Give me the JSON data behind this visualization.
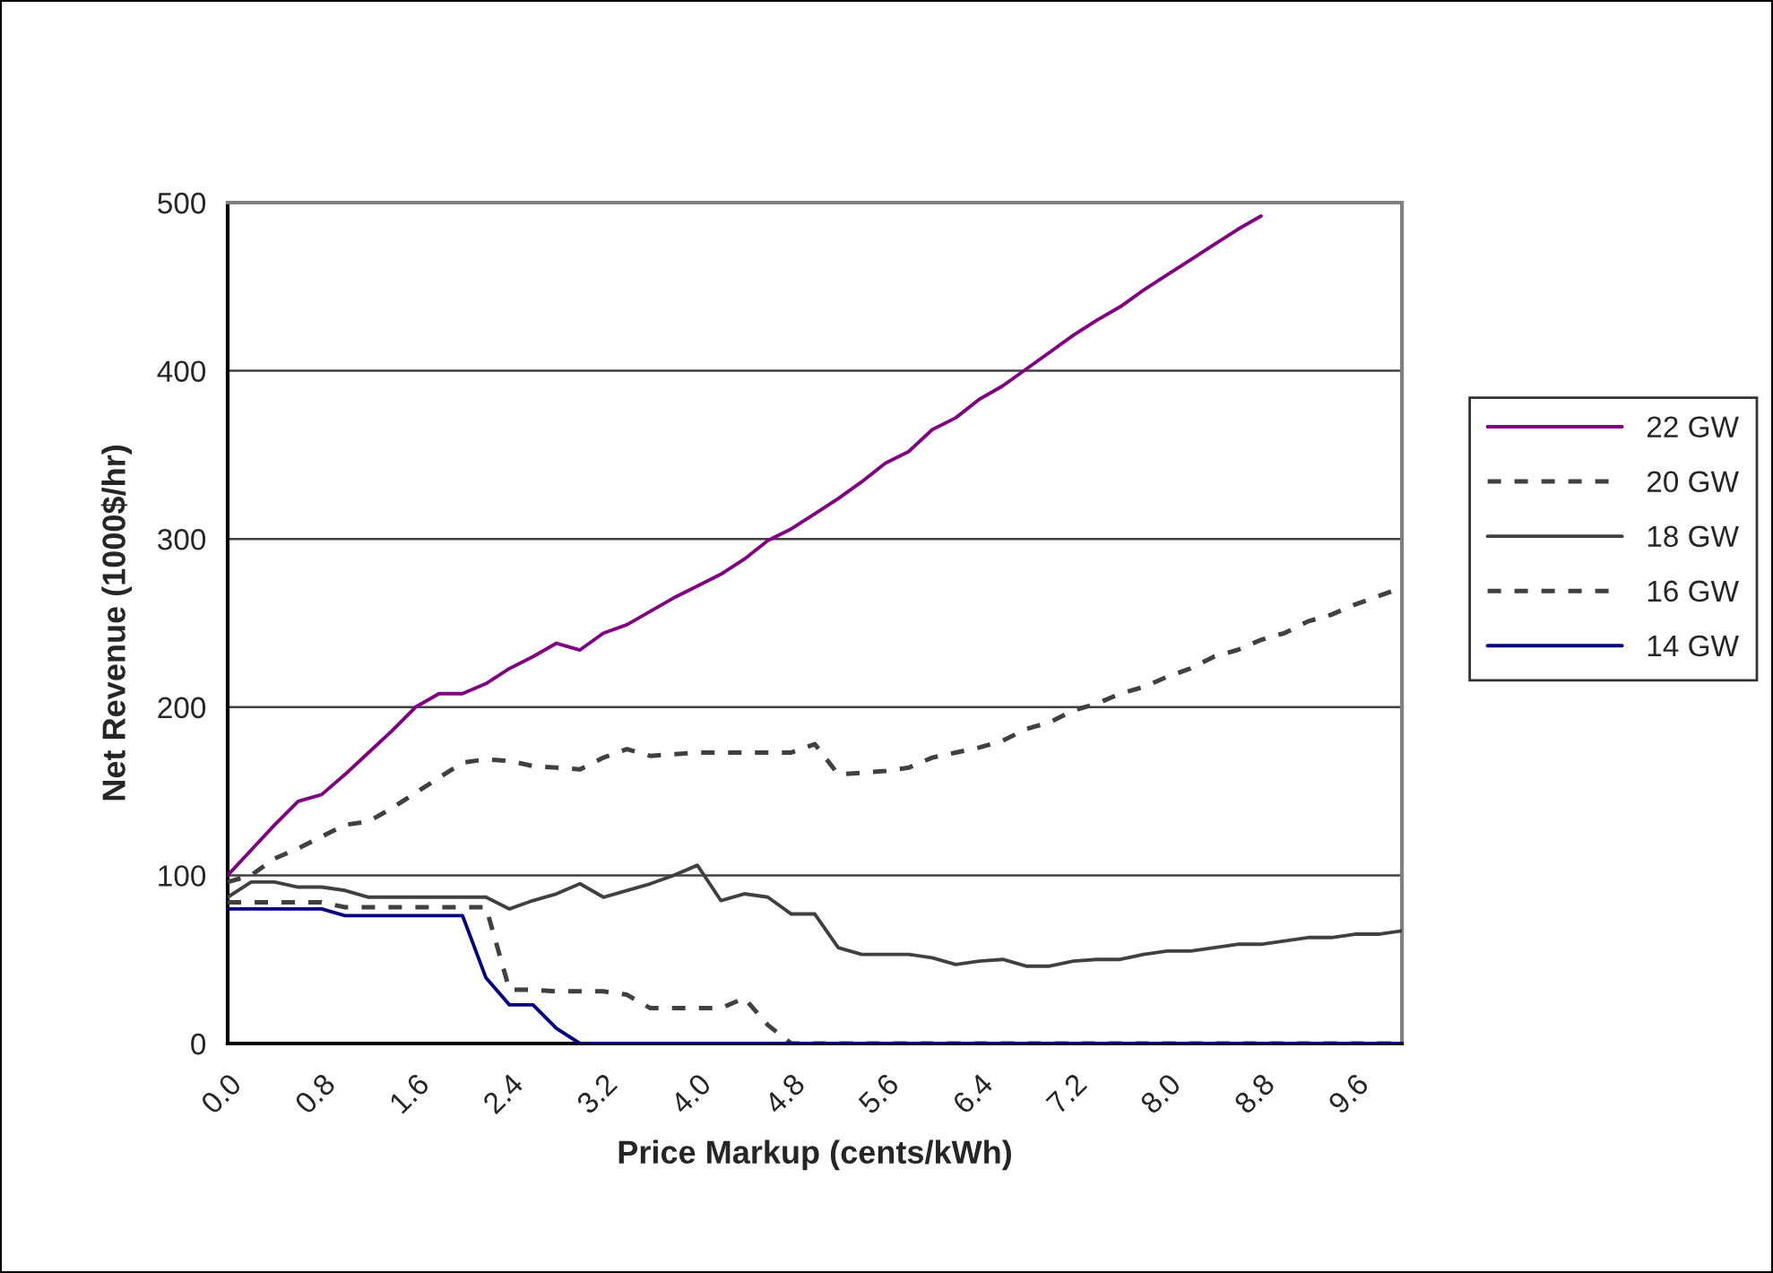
{
  "chart_data": {
    "type": "line",
    "xlabel": "Price Markup (cents/kWh)",
    "ylabel": "Net Revenue (1000$/hr)",
    "categories": [
      "0.0",
      null,
      null,
      null,
      "0.8",
      null,
      null,
      null,
      "1.6",
      null,
      null,
      null,
      "2.4",
      null,
      null,
      null,
      "3.2",
      null,
      null,
      null,
      "4.0",
      null,
      null,
      null,
      "4.8",
      null,
      null,
      null,
      "5.6",
      null,
      null,
      null,
      "6.4",
      null,
      null,
      null,
      "7.2",
      null,
      null,
      null,
      "8.0",
      null,
      null,
      null,
      "8.8",
      null,
      null,
      null,
      "9.6",
      null,
      null
    ],
    "ylim": [
      0,
      500
    ],
    "yticks": [
      0,
      100,
      200,
      300,
      400,
      500
    ],
    "grid": "y",
    "legend": "right",
    "marker": "none",
    "series": [
      {
        "name": "22 GW",
        "color": "#800080",
        "line_style": "solid",
        "values": [
          100,
          115,
          130,
          144,
          148,
          160,
          173,
          186,
          200,
          208,
          208,
          214,
          223,
          230,
          238,
          234,
          244,
          249,
          257,
          265,
          272,
          279,
          288,
          299,
          306,
          315,
          324,
          334,
          345,
          352,
          365,
          372,
          383,
          391,
          401,
          411,
          421,
          430,
          438,
          448,
          457,
          466,
          475,
          484,
          492,
          null,
          null,
          null,
          null,
          null,
          null
        ]
      },
      {
        "name": "20 GW",
        "color": "#404040",
        "line_style": "dashed",
        "values": [
          96,
          100,
          110,
          116,
          123,
          130,
          132,
          140,
          149,
          158,
          167,
          169,
          168,
          165,
          164,
          163,
          170,
          175,
          171,
          172,
          173,
          173,
          173,
          173,
          173,
          178,
          160,
          161,
          162,
          164,
          170,
          173,
          176,
          180,
          187,
          191,
          198,
          202,
          208,
          212,
          218,
          223,
          230,
          234,
          240,
          244,
          251,
          255,
          261,
          266,
          271
        ]
      },
      {
        "name": "18 GW",
        "color": "#404040",
        "line_style": "solid",
        "values": [
          87,
          96,
          96,
          93,
          93,
          91,
          87,
          87,
          87,
          87,
          87,
          87,
          80,
          85,
          89,
          95,
          87,
          91,
          95,
          100,
          106,
          85,
          89,
          87,
          77,
          77,
          57,
          53,
          53,
          53,
          51,
          47,
          49,
          50,
          46,
          46,
          49,
          50,
          50,
          53,
          55,
          55,
          57,
          59,
          59,
          61,
          63,
          63,
          65,
          65,
          67
        ]
      },
      {
        "name": "16 GW",
        "color": "#404040",
        "line_style": "dashed",
        "values": [
          84,
          84,
          84,
          84,
          84,
          81,
          81,
          81,
          81,
          81,
          81,
          81,
          32,
          32,
          31,
          31,
          31,
          29,
          21,
          21,
          21,
          21,
          27,
          11,
          0,
          0,
          0,
          0,
          0,
          0,
          0,
          0,
          0,
          0,
          0,
          0,
          0,
          0,
          0,
          0,
          0,
          0,
          0,
          0,
          0,
          0,
          0,
          0,
          0,
          0,
          0
        ]
      },
      {
        "name": "14 GW",
        "color": "#000080",
        "line_style": "solid",
        "values": [
          80,
          80,
          80,
          80,
          80,
          76,
          76,
          76,
          76,
          76,
          76,
          39,
          23,
          23,
          9,
          0,
          0,
          0,
          0,
          0,
          0,
          0,
          0,
          0,
          0,
          0,
          0,
          0,
          0,
          0,
          0,
          0,
          0,
          0,
          0,
          0,
          0,
          0,
          0,
          0,
          0,
          0,
          0,
          0,
          0,
          0,
          0,
          0,
          0,
          0,
          0
        ]
      }
    ]
  }
}
